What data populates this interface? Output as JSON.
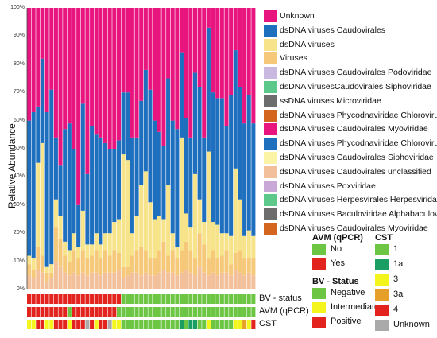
{
  "chart_data": {
    "type": "bar",
    "stacked": true,
    "ylabel": "Relative Abundance",
    "ylim": [
      0,
      100
    ],
    "yticks": [
      "0%",
      "10%",
      "20%",
      "30%",
      "40%",
      "50%",
      "60%",
      "70%",
      "80%",
      "90%",
      "100%"
    ],
    "n_samples": 51,
    "categories_note": "",
    "series": [
      {
        "name": "Unknown",
        "color": "#e8157f"
      },
      {
        "name": "dsDNA viruses Caudovirales",
        "color": "#1f6fbf"
      },
      {
        "name": "dsDNA viruses",
        "color": "#f7e38a"
      },
      {
        "name": "Viruses",
        "color": "#f6c97a"
      },
      {
        "name": "dsDNA viruses Caudovirales Podoviridae",
        "color": "#c9b8e0"
      },
      {
        "name": "dsDNA virusesCaudovirales Siphoviridae",
        "color": "#5cc98a"
      },
      {
        "name": "ssDNA viruses Microviridae",
        "color": "#6d6d6d"
      },
      {
        "name": "dsDNA viruses Phycodnaviridae Chlorovirus",
        "color": "#d4651f"
      },
      {
        "name": "dsDNA viruses Caudovirales Myoviridae",
        "color": "#e8157f"
      },
      {
        "name": "dsDNA viruses Phycodnaviridae Chlorovirus",
        "color": "#1f6fbf"
      },
      {
        "name": "dsDNA viruses Caudovirales Siphoviridae",
        "color": "#fbf3a6"
      },
      {
        "name": "dsDNA viruses Caudovirales unclassified",
        "color": "#f2c09a"
      },
      {
        "name": "dsDNA viruses Poxviridae",
        "color": "#c9a7d6"
      },
      {
        "name": "dsDNA viruses Herpesvirales Herpesviridae",
        "color": "#5cc98a"
      },
      {
        "name": "dsDNA viruses Baculoviridae Alphabaculovirus",
        "color": "#6d6d6d"
      },
      {
        "name": "dsDNA viruses Caudovirales Myoviridae",
        "color": "#d4651f"
      }
    ],
    "stack_values": {
      "caudovirales": [
        48,
        52,
        20,
        30,
        55,
        62,
        22,
        18,
        40,
        45,
        30,
        15,
        38,
        25,
        42,
        35,
        38,
        32,
        30,
        26,
        28,
        22,
        24,
        34,
        28,
        30,
        36,
        40,
        35,
        30,
        26,
        38,
        40,
        42,
        30,
        34,
        32,
        36,
        40,
        30,
        44,
        46,
        45,
        48,
        38,
        50,
        42,
        40,
        40,
        48,
        40
      ],
      "dsdna": [
        3,
        4,
        30,
        40,
        2,
        3,
        10,
        8,
        5,
        4,
        6,
        4,
        14,
        5,
        4,
        6,
        5,
        6,
        8,
        10,
        12,
        40,
        38,
        8,
        12,
        22,
        28,
        20,
        14,
        12,
        8,
        25,
        6,
        4,
        40,
        10,
        8,
        30,
        12,
        8,
        38,
        10,
        12,
        8,
        6,
        10,
        30,
        18,
        8,
        10,
        8
      ],
      "viruses": [
        4,
        3,
        8,
        6,
        3,
        2,
        12,
        10,
        6,
        5,
        8,
        6,
        8,
        6,
        6,
        8,
        6,
        8,
        6,
        8,
        6,
        4,
        3,
        6,
        8,
        10,
        8,
        6,
        6,
        8,
        10,
        6,
        8,
        6,
        8,
        10,
        8,
        6,
        12,
        10,
        6,
        8,
        6,
        6,
        8,
        4,
        6,
        8,
        6,
        5,
        6
      ],
      "misc": [
        5,
        4,
        7,
        6,
        3,
        4,
        10,
        8,
        6,
        5,
        6,
        5,
        6,
        5,
        6,
        6,
        5,
        6,
        6,
        6,
        7,
        4,
        5,
        6,
        6,
        5,
        6,
        5,
        5,
        6,
        7,
        6,
        6,
        5,
        6,
        7,
        6,
        5,
        8,
        6,
        5,
        6,
        5,
        6,
        6,
        5,
        7,
        6,
        5,
        6,
        5
      ],
      "unknown": [
        40,
        37,
        35,
        18,
        37,
        29,
        46,
        56,
        43,
        41,
        50,
        70,
        34,
        59,
        42,
        45,
        46,
        48,
        50,
        50,
        47,
        30,
        30,
        46,
        46,
        33,
        22,
        29,
        40,
        44,
        49,
        25,
        40,
        43,
        16,
        39,
        46,
        23,
        28,
        46,
        7,
        30,
        32,
        32,
        42,
        31,
        15,
        28,
        41,
        31,
        41
      ]
    },
    "annotation_rows": {
      "BV - status": [
        "Positive",
        "Positive",
        "Positive",
        "Positive",
        "Positive",
        "Positive",
        "Positive",
        "Positive",
        "Positive",
        "Positive",
        "Positive",
        "Positive",
        "Positive",
        "Positive",
        "Positive",
        "Positive",
        "Positive",
        "Positive",
        "Positive",
        "Positive",
        "Positive",
        "Negative",
        "Negative",
        "Negative",
        "Negative",
        "Negative",
        "Negative",
        "Negative",
        "Negative",
        "Negative",
        "Negative",
        "Negative",
        "Negative",
        "Negative",
        "Negative",
        "Negative",
        "Negative",
        "Negative",
        "Negative",
        "Negative",
        "Negative",
        "Negative",
        "Negative",
        "Negative",
        "Negative",
        "Negative",
        "Negative",
        "Negative",
        "Negative",
        "Negative",
        "Negative"
      ],
      "AVM (qPCR)": [
        "Yes",
        "Yes",
        "Yes",
        "Yes",
        "Yes",
        "Yes",
        "Yes",
        "Yes",
        "Yes",
        "No",
        "Yes",
        "Yes",
        "Yes",
        "Yes",
        "Yes",
        "Yes",
        "Yes",
        "Yes",
        "Yes",
        "Yes",
        "No",
        "No",
        "No",
        "No",
        "No",
        "No",
        "No",
        "No",
        "No",
        "No",
        "No",
        "No",
        "No",
        "No",
        "No",
        "No",
        "No",
        "No",
        "No",
        "No",
        "No",
        "No",
        "No",
        "No",
        "No",
        "No",
        "No",
        "No",
        "No",
        "No",
        "No"
      ],
      "CST": [
        "3",
        "3",
        "4",
        "4",
        "3",
        "3",
        "4",
        "4",
        "4",
        "3",
        "4",
        "4",
        "4",
        "Unknown",
        "4",
        "3",
        "4",
        "4",
        "Unknown",
        "3",
        "3",
        "1",
        "1",
        "1",
        "1",
        "1",
        "1",
        "1",
        "1",
        "1",
        "1",
        "1",
        "1",
        "1",
        "1a",
        "1",
        "1a",
        "1a",
        "1",
        "1",
        "3",
        "1",
        "1",
        "1",
        "1",
        "1",
        "3",
        "3",
        "3a",
        "3",
        "4"
      ]
    },
    "row_labels": [
      "BV - status",
      "AVM (qPCR)",
      "CST"
    ]
  },
  "legend_avm": {
    "title": "AVM (qPCR)",
    "items": [
      {
        "label": "No",
        "color": "#6cc644"
      },
      {
        "label": "Yes",
        "color": "#e3231d"
      }
    ]
  },
  "legend_bv": {
    "title": "BV - Status",
    "items": [
      {
        "label": "Negative",
        "color": "#6cc644"
      },
      {
        "label": "Intermediate",
        "color": "#f5f51e"
      },
      {
        "label": "Positive",
        "color": "#e3231d"
      }
    ]
  },
  "legend_cst": {
    "title": "CST",
    "items": [
      {
        "label": "1",
        "color": "#6cc644"
      },
      {
        "label": "1a",
        "color": "#1b9e63"
      },
      {
        "label": "3",
        "color": "#f5f51e"
      },
      {
        "label": "3a",
        "color": "#e6a02a"
      },
      {
        "label": "4",
        "color": "#e3231d"
      },
      {
        "label": "Unknown",
        "color": "#aaaaaa"
      }
    ]
  },
  "status_colors": {
    "Positive": "#e3231d",
    "Negative": "#6cc644",
    "Intermediate": "#f5f51e",
    "Yes": "#e3231d",
    "No": "#6cc644",
    "1": "#6cc644",
    "1a": "#1b9e63",
    "3": "#f5f51e",
    "3a": "#e6a02a",
    "4": "#e3231d",
    "Unknown": "#aaaaaa"
  }
}
